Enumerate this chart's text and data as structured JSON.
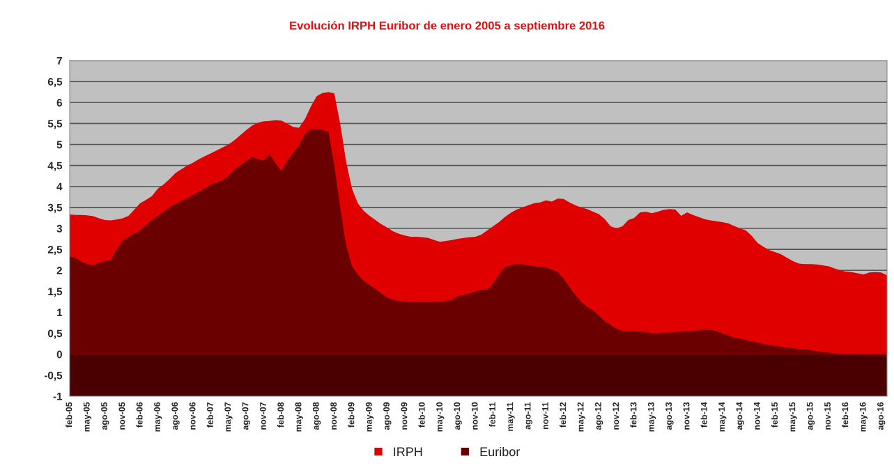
{
  "chart_data": {
    "type": "area",
    "title": "Evolución IRPH Euribor de enero 2005 a septiembre 2016",
    "categories": [
      "feb-05",
      null,
      null,
      "may-05",
      null,
      null,
      "ago-05",
      null,
      null,
      "nov-05",
      null,
      null,
      "feb-06",
      null,
      null,
      "may-06",
      null,
      null,
      "ago-06",
      null,
      null,
      "nov-06",
      null,
      null,
      "feb-07",
      null,
      null,
      "may-07",
      null,
      null,
      "ago-07",
      null,
      null,
      "nov-07",
      null,
      null,
      "feb-08",
      null,
      null,
      "may-08",
      null,
      null,
      "ago-08",
      null,
      null,
      "nov-08",
      null,
      null,
      "feb-09",
      null,
      null,
      "may-09",
      null,
      null,
      "ago-09",
      null,
      null,
      "nov-09",
      null,
      null,
      "feb-10",
      null,
      null,
      "may-10",
      null,
      null,
      "ago-10",
      null,
      null,
      "nov-10",
      null,
      null,
      "feb-11",
      null,
      null,
      "may-11",
      null,
      null,
      "ago-11",
      null,
      null,
      "nov-11",
      null,
      null,
      "feb-12",
      null,
      null,
      "may-12",
      null,
      null,
      "ago-12",
      null,
      null,
      "nov-12",
      null,
      null,
      "feb-13",
      null,
      null,
      "may-13",
      null,
      null,
      "ago-13",
      null,
      null,
      "nov-13",
      null,
      null,
      "feb-14",
      null,
      null,
      "may-14",
      null,
      null,
      "ago-14",
      null,
      null,
      "nov-14",
      null,
      null,
      "feb-15",
      null,
      null,
      "may-15",
      null,
      null,
      "ago-15",
      null,
      null,
      "nov-15",
      null,
      null,
      "feb-16",
      null,
      null,
      "may-16",
      null,
      null,
      "ago-16",
      null
    ],
    "series": [
      {
        "name": "IRPH",
        "color": "#e00000",
        "values": [
          3.33,
          3.32,
          3.32,
          3.31,
          3.29,
          3.24,
          3.2,
          3.19,
          3.21,
          3.24,
          3.3,
          3.45,
          3.6,
          3.68,
          3.77,
          3.95,
          4.05,
          4.18,
          4.32,
          4.41,
          4.5,
          4.57,
          4.65,
          4.72,
          4.79,
          4.86,
          4.93,
          5.0,
          5.1,
          5.22,
          5.34,
          5.45,
          5.52,
          5.55,
          5.56,
          5.58,
          5.57,
          5.5,
          5.42,
          5.4,
          5.6,
          5.9,
          6.15,
          6.23,
          6.25,
          6.22,
          5.5,
          4.6,
          3.95,
          3.6,
          3.42,
          3.3,
          3.2,
          3.1,
          3.02,
          2.93,
          2.87,
          2.83,
          2.8,
          2.8,
          2.79,
          2.77,
          2.72,
          2.68,
          2.7,
          2.72,
          2.75,
          2.77,
          2.79,
          2.8,
          2.85,
          2.95,
          3.05,
          3.15,
          3.27,
          3.37,
          3.45,
          3.5,
          3.55,
          3.6,
          3.62,
          3.67,
          3.64,
          3.71,
          3.7,
          3.62,
          3.55,
          3.5,
          3.46,
          3.4,
          3.34,
          3.22,
          3.05,
          3.0,
          3.05,
          3.2,
          3.25,
          3.38,
          3.4,
          3.36,
          3.4,
          3.44,
          3.46,
          3.45,
          3.3,
          3.38,
          3.32,
          3.27,
          3.22,
          3.19,
          3.17,
          3.15,
          3.12,
          3.06,
          3.0,
          2.95,
          2.82,
          2.65,
          2.56,
          2.48,
          2.43,
          2.38,
          2.3,
          2.22,
          2.16,
          2.15,
          2.15,
          2.14,
          2.12,
          2.1,
          2.05,
          2.0,
          1.97,
          1.96,
          1.93,
          1.9,
          1.95,
          1.96,
          1.95,
          1.88
        ]
      },
      {
        "name": "Euribor",
        "color": "#6a0000",
        "values": [
          2.33,
          2.3,
          2.2,
          2.15,
          2.12,
          2.18,
          2.22,
          2.25,
          2.5,
          2.7,
          2.8,
          2.88,
          2.95,
          3.08,
          3.2,
          3.3,
          3.4,
          3.5,
          3.58,
          3.65,
          3.72,
          3.8,
          3.88,
          3.95,
          4.05,
          4.1,
          4.15,
          4.25,
          4.4,
          4.5,
          4.6,
          4.7,
          4.65,
          4.62,
          4.76,
          4.55,
          4.37,
          4.6,
          4.8,
          4.98,
          5.24,
          5.37,
          5.36,
          5.35,
          5.3,
          4.5,
          3.5,
          2.6,
          2.1,
          1.9,
          1.75,
          1.65,
          1.55,
          1.45,
          1.35,
          1.3,
          1.27,
          1.26,
          1.25,
          1.25,
          1.24,
          1.24,
          1.25,
          1.25,
          1.27,
          1.3,
          1.38,
          1.42,
          1.45,
          1.5,
          1.54,
          1.54,
          1.68,
          1.9,
          2.07,
          2.12,
          2.15,
          2.14,
          2.12,
          2.1,
          2.08,
          2.07,
          2.02,
          1.96,
          1.8,
          1.6,
          1.41,
          1.25,
          1.13,
          1.05,
          0.92,
          0.79,
          0.7,
          0.6,
          0.56,
          0.55,
          0.55,
          0.54,
          0.53,
          0.5,
          0.5,
          0.51,
          0.52,
          0.53,
          0.54,
          0.55,
          0.56,
          0.57,
          0.58,
          0.58,
          0.55,
          0.5,
          0.45,
          0.4,
          0.37,
          0.34,
          0.31,
          0.28,
          0.25,
          0.22,
          0.2,
          0.18,
          0.16,
          0.14,
          0.13,
          0.12,
          0.1,
          0.08,
          0.06,
          0.04,
          0.02,
          0.01,
          0.0,
          -0.01,
          -0.02,
          -0.03,
          -0.04,
          -0.05,
          -0.06,
          -0.07
        ]
      }
    ],
    "ylim": [
      -1,
      7
    ],
    "yticks": [
      -1,
      {
        "value": -0.5,
        "label": "-0,5"
      },
      0,
      {
        "value": 0.5,
        "label": "0,5"
      },
      1,
      {
        "value": 1.5,
        "label": "1,5"
      },
      2,
      {
        "value": 2.5,
        "label": "2,5"
      },
      3,
      {
        "value": 3.5,
        "label": "3,5"
      },
      4,
      {
        "value": 4.5,
        "label": "4,5"
      },
      5,
      {
        "value": 5.5,
        "label": "5,5"
      },
      6,
      {
        "value": 6.5,
        "label": "6,5"
      },
      7
    ],
    "bands": [
      {
        "axis": "y",
        "from": -1,
        "to": 0,
        "color": "#4a0000"
      }
    ],
    "grid": "y",
    "legend": "bottom"
  }
}
